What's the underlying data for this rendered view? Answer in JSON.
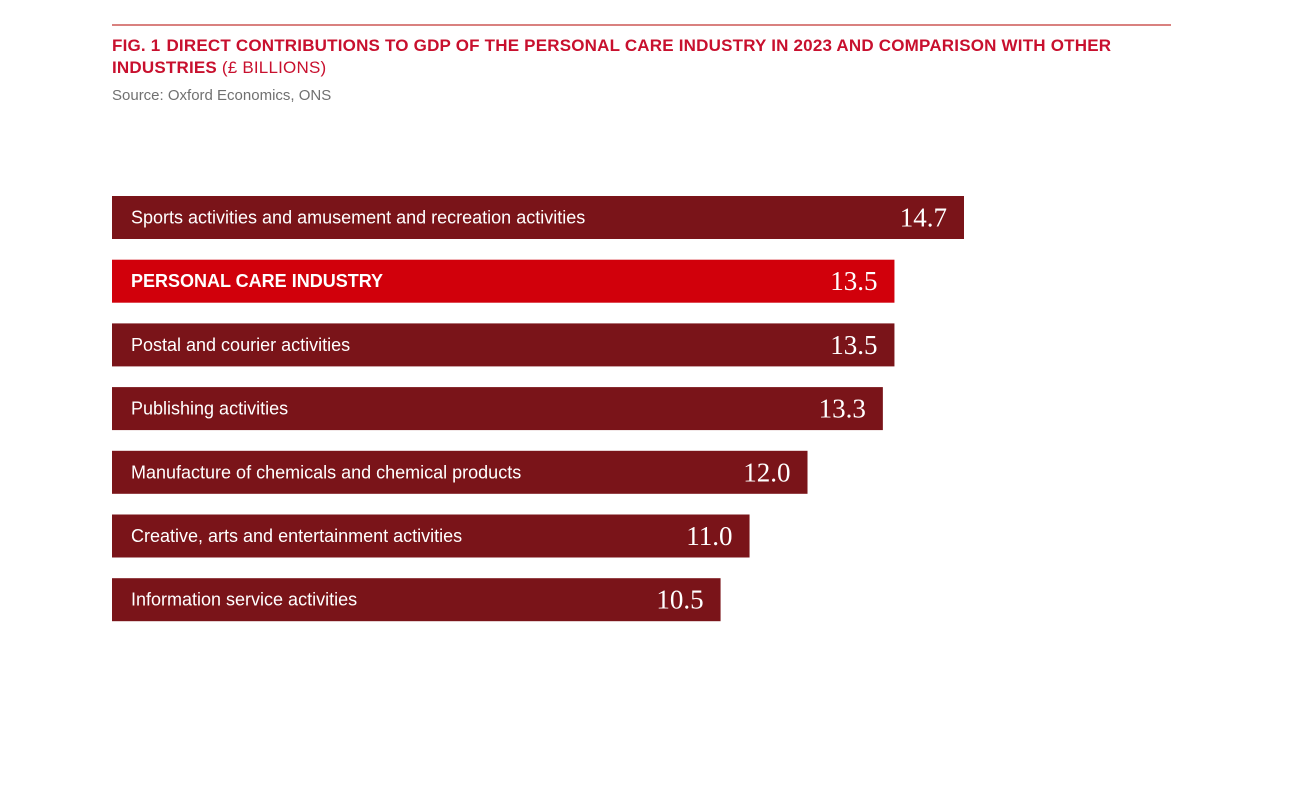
{
  "header": {
    "fig_number": "FIG. 1",
    "title": "DIRECT CONTRIBUTIONS TO GDP OF THE PERSONAL CARE INDUSTRY IN 2023 AND COMPARISON WITH OTHER INDUSTRIES",
    "unit": "(£ BILLIONS)",
    "source": "Source: Oxford Economics, ONS"
  },
  "colors": {
    "bar": "#7a1419",
    "highlight_bar": "#d1000b",
    "title": "#c8102e",
    "rule": "#d9817f"
  },
  "chart_data": {
    "type": "bar",
    "orientation": "horizontal",
    "title": "DIRECT CONTRIBUTIONS TO GDP OF THE PERSONAL CARE INDUSTRY IN 2023 AND COMPARISON WITH OTHER INDUSTRIES",
    "unit": "£ billions",
    "xlim": [
      0,
      14.7
    ],
    "categories": [
      "Sports activities and amusement and recreation activities",
      "PERSONAL CARE INDUSTRY",
      "Postal and courier activities",
      "Publishing activities",
      "Manufacture of chemicals and chemical products",
      "Creative, arts and entertainment activities",
      "Information service activities"
    ],
    "values": [
      14.7,
      13.5,
      13.5,
      13.3,
      12.0,
      11.0,
      10.5
    ],
    "value_labels": [
      "14.7",
      "13.5",
      "13.5",
      "13.3",
      "12.0",
      "11.0",
      "10.5"
    ],
    "highlight_index": 1
  }
}
